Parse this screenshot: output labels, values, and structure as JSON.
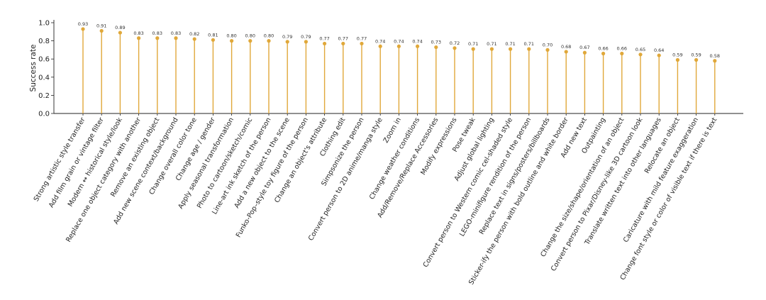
{
  "chart_data": {
    "type": "lollipop",
    "ylabel": "Success rate",
    "xlabel": "",
    "title": "",
    "ylim": [
      0.0,
      1.0
    ],
    "yticks": [
      "0.0",
      "0.2",
      "0.4",
      "0.6",
      "0.8",
      "1.0"
    ],
    "grid": false,
    "color": "#e0a83a",
    "categories": [
      "Strong artistic style transfer",
      "Add film grain or vintage filter",
      "Modern ↔ historical style/look",
      "Replace one object category with another",
      "Remove an existing object",
      "Add new scene context/background",
      "Change overall color tone",
      "Change age / gender",
      "Apply seasonal transformation",
      "Photo to cartoon/sketch/comic",
      "Line-art ink sketch of the person",
      "Add a new object to the scene",
      "Funko-Pop–style toy figure of the person",
      "Change an object's attribute",
      "Clothing edit",
      "Simpsonize the person",
      "Convert person to 2D anime/manga style",
      "Zoom in",
      "Change weather conditions",
      "Add/Remove/Replace Accessories",
      "Modify expressions",
      "Pose tweak",
      "Adjust global lighting",
      "Convert person to Western comic cel-shaded style",
      "LEGO-minifigure rendition of the person",
      "Replace text in signs/posters/billboards",
      "Sticker-ify the person with bold outline and white border",
      "Add new text",
      "Outpainting",
      "Change the size/shape/orientation of an object",
      "Convert person to Pixar/Disney-like 3D cartoon look",
      "Translate written text into other languages",
      "Relocate an object",
      "Caricature with mild feature exaggeration",
      "Change font style or color of visible text if there is text"
    ],
    "values": [
      0.93,
      0.91,
      0.89,
      0.83,
      0.83,
      0.83,
      0.82,
      0.81,
      0.8,
      0.8,
      0.8,
      0.79,
      0.79,
      0.77,
      0.77,
      0.77,
      0.74,
      0.74,
      0.74,
      0.73,
      0.72,
      0.71,
      0.71,
      0.71,
      0.71,
      0.7,
      0.68,
      0.67,
      0.66,
      0.66,
      0.65,
      0.64,
      0.59,
      0.59,
      0.58
    ],
    "value_labels": [
      "0.93",
      "0.91",
      "0.89",
      "0.83",
      "0.83",
      "0.83",
      "0.82",
      "0.81",
      "0.80",
      "0.80",
      "0.80",
      "0.79",
      "0.79",
      "0.77",
      "0.77",
      "0.77",
      "0.74",
      "0.74",
      "0.74",
      "0.73",
      "0.72",
      "0.71",
      "0.71",
      "0.71",
      "0.71",
      "0.70",
      "0.68",
      "0.67",
      "0.66",
      "0.66",
      "0.65",
      "0.64",
      "0.59",
      "0.59",
      "0.58"
    ]
  }
}
